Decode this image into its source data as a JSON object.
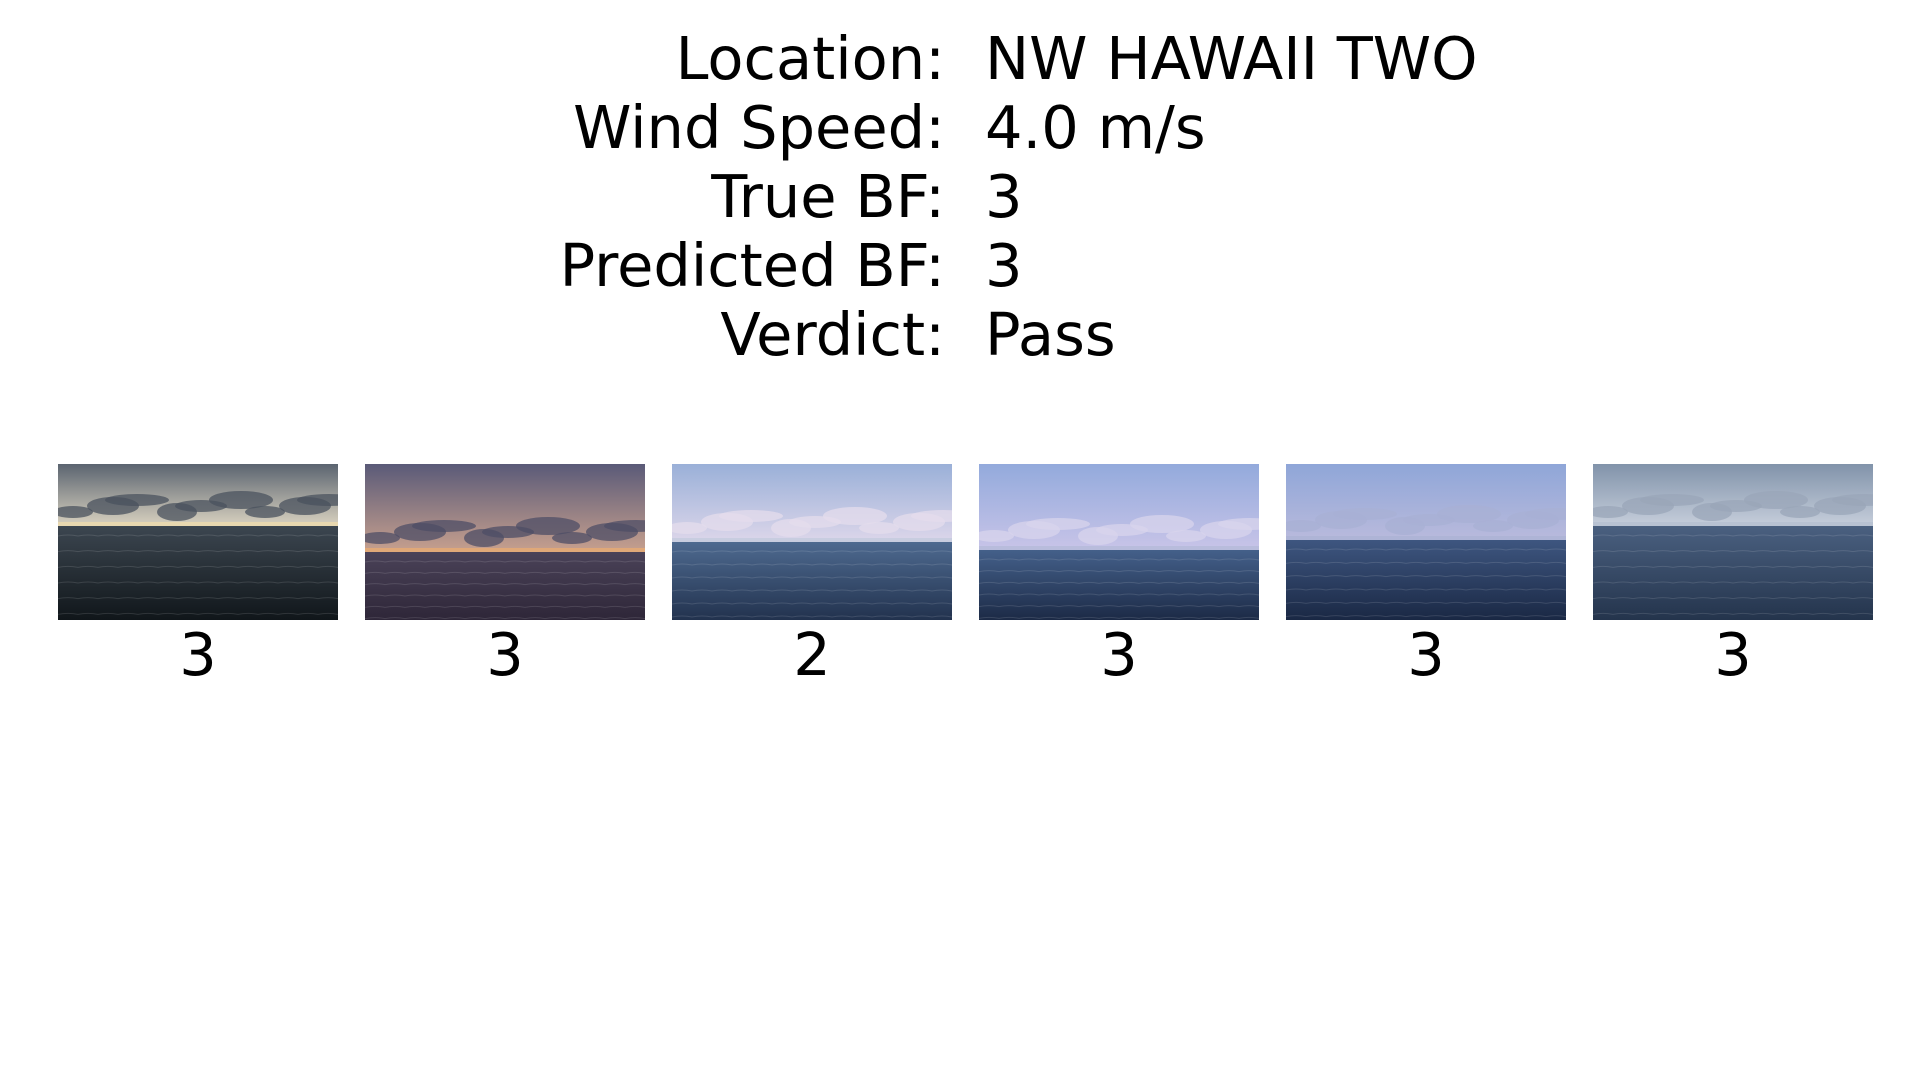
{
  "info": {
    "location_label": "Location:",
    "location_value": "NW HAWAII TWO",
    "wind_speed_label": "Wind Speed:",
    "wind_speed_value": "4.0 m/s",
    "true_bf_label": "True BF:",
    "true_bf_value": "3",
    "predicted_bf_label": "Predicted BF:",
    "predicted_bf_value": "3",
    "verdict_label": "Verdict:",
    "verdict_value": "Pass"
  },
  "thumbnails": [
    {
      "label": "3",
      "sky_top": "#5b6470",
      "sky_bottom": "#d9d2c0",
      "horizon": "#e8d8b0",
      "sea_top": "#3c4650",
      "sea_bottom": "#10161a",
      "cloud": "#4a525e"
    },
    {
      "label": "3",
      "sky_top": "#5a5a78",
      "sky_bottom": "#c7a08e",
      "horizon": "#e0a878",
      "sea_top": "#4a4258",
      "sea_bottom": "#2e2638",
      "cloud": "#4e4e66"
    },
    {
      "label": "2",
      "sky_top": "#9ab0d8",
      "sky_bottom": "#dcd6ea",
      "horizon": "#c8cde0",
      "sea_top": "#4e6a90",
      "sea_bottom": "#22324e",
      "cloud": "#e4dcec"
    },
    {
      "label": "3",
      "sky_top": "#93aadc",
      "sky_bottom": "#c8c4e8",
      "horizon": "#b8bcdc",
      "sea_top": "#44608a",
      "sea_bottom": "#1c2a46",
      "cloud": "#d8d4ec"
    },
    {
      "label": "3",
      "sky_top": "#8fa6d8",
      "sky_bottom": "#b9badc",
      "horizon": "#aeb4d6",
      "sea_top": "#3e5680",
      "sea_bottom": "#1a2844",
      "cloud": "#a8b0d4"
    },
    {
      "label": "3",
      "sky_top": "#8193aa",
      "sky_bottom": "#c6cedb",
      "horizon": "#b8c2d2",
      "sea_top": "#4a6080",
      "sea_bottom": "#24344c",
      "cloud": "#9aa6b8"
    }
  ]
}
